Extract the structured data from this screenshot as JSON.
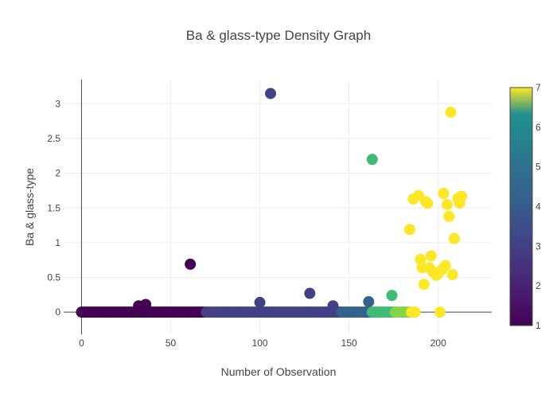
{
  "chart_data": {
    "type": "scatter",
    "title": "Ba & glass-type Density Graph",
    "xlabel": "Number of Observation",
    "ylabel": "Ba & glass-type",
    "xlim": [
      -10,
      230
    ],
    "ylim": [
      -0.32,
      3.35
    ],
    "xticks": [
      0,
      50,
      100,
      150,
      200
    ],
    "yticks": [
      0,
      0.5,
      1,
      1.5,
      2,
      2.5,
      3
    ],
    "grid": true,
    "colorbar": {
      "min": 1,
      "max": 7,
      "ticks": [
        1,
        2,
        3,
        4,
        5,
        6,
        7
      ],
      "colorscale": "viridis"
    },
    "colors": {
      "background": "#ffffff",
      "grid": "#eeeeee",
      "zeroline": "#444444",
      "text": "#444444"
    },
    "zero_ba_ranges": [
      {
        "x_start": 0,
        "x_end": 69,
        "glass_type": 1
      },
      {
        "x_start": 70,
        "x_end": 145,
        "glass_type": 2
      },
      {
        "x_start": 146,
        "x_end": 162,
        "glass_type": 3
      },
      {
        "x_start": 163,
        "x_end": 175,
        "glass_type": 5
      },
      {
        "x_start": 176,
        "x_end": 184,
        "glass_type": 6
      },
      {
        "x_start": 185,
        "x_end": 187,
        "glass_type": 7
      }
    ],
    "points": [
      {
        "x": 32,
        "y": 0.09,
        "c": 1
      },
      {
        "x": 36,
        "y": 0.11,
        "c": 1
      },
      {
        "x": 61,
        "y": 0.69,
        "c": 1
      },
      {
        "x": 100,
        "y": 0.14,
        "c": 2
      },
      {
        "x": 106,
        "y": 3.15,
        "c": 2
      },
      {
        "x": 128,
        "y": 0.27,
        "c": 2
      },
      {
        "x": 141,
        "y": 0.09,
        "c": 2
      },
      {
        "x": 161,
        "y": 0.15,
        "c": 3
      },
      {
        "x": 163,
        "y": 2.2,
        "c": 5
      },
      {
        "x": 174,
        "y": 0.24,
        "c": 5
      },
      {
        "x": 184,
        "y": 1.19,
        "c": 7
      },
      {
        "x": 186,
        "y": 1.63,
        "c": 7
      },
      {
        "x": 189,
        "y": 1.68,
        "c": 7
      },
      {
        "x": 190,
        "y": 0.76,
        "c": 7
      },
      {
        "x": 191,
        "y": 0.64,
        "c": 7
      },
      {
        "x": 192,
        "y": 0.4,
        "c": 7
      },
      {
        "x": 193,
        "y": 1.59,
        "c": 7
      },
      {
        "x": 194,
        "y": 1.57,
        "c": 7
      },
      {
        "x": 195,
        "y": 0.64,
        "c": 7
      },
      {
        "x": 196,
        "y": 0.81,
        "c": 7
      },
      {
        "x": 197,
        "y": 0.58,
        "c": 7
      },
      {
        "x": 199,
        "y": 0.53,
        "c": 7
      },
      {
        "x": 200,
        "y": 0.56,
        "c": 7
      },
      {
        "x": 201,
        "y": 0.0,
        "c": 7
      },
      {
        "x": 202,
        "y": 0.61,
        "c": 7
      },
      {
        "x": 203,
        "y": 1.71,
        "c": 7
      },
      {
        "x": 204,
        "y": 0.67,
        "c": 7
      },
      {
        "x": 205,
        "y": 1.55,
        "c": 7
      },
      {
        "x": 206,
        "y": 1.38,
        "c": 7
      },
      {
        "x": 207,
        "y": 2.88,
        "c": 7
      },
      {
        "x": 208,
        "y": 0.54,
        "c": 7
      },
      {
        "x": 209,
        "y": 1.06,
        "c": 7
      },
      {
        "x": 211,
        "y": 1.64,
        "c": 7
      },
      {
        "x": 212,
        "y": 1.57,
        "c": 7
      },
      {
        "x": 213,
        "y": 1.67,
        "c": 7
      }
    ]
  }
}
